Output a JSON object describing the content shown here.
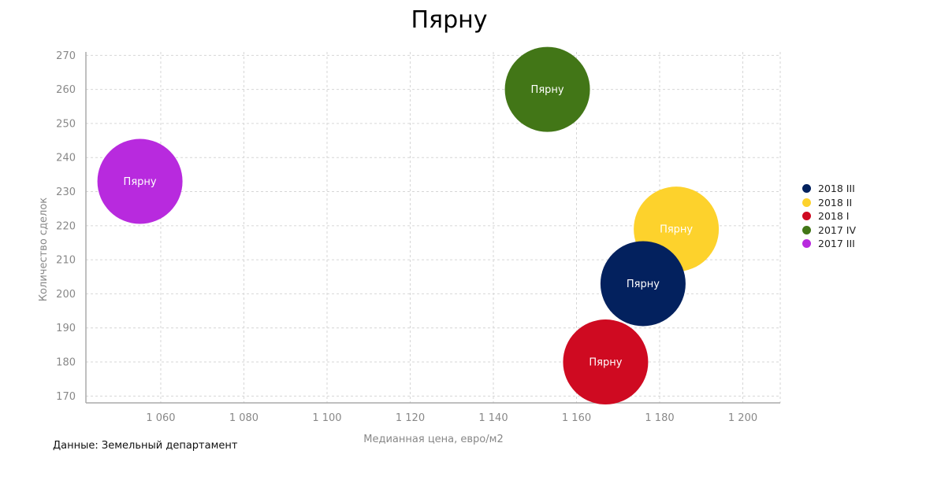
{
  "chart_data": {
    "type": "bubble",
    "title": "Пярну",
    "xlabel": "Медианная цена, евро/м2",
    "ylabel": "Количество сделок",
    "xlim": [
      1042,
      1209
    ],
    "ylim": [
      168,
      271
    ],
    "xticks": [
      "1 060",
      "1 080",
      "1 100",
      "1 120",
      "1 140",
      "1 160",
      "1 180",
      "1 200"
    ],
    "xtick_values": [
      1060,
      1080,
      1100,
      1120,
      1140,
      1160,
      1180,
      1200
    ],
    "yticks": [
      "170",
      "180",
      "190",
      "200",
      "210",
      "220",
      "230",
      "240",
      "250",
      "260",
      "270"
    ],
    "ytick_values": [
      170,
      180,
      190,
      200,
      210,
      220,
      230,
      240,
      250,
      260,
      270
    ],
    "grid": true,
    "legend_position": "right",
    "series": [
      {
        "name": "2017 III",
        "color": "#b82ade",
        "points": [
          {
            "x": 1055,
            "y": 233,
            "label": "Пярну"
          }
        ]
      },
      {
        "name": "2017 IV",
        "color": "#427617",
        "points": [
          {
            "x": 1153,
            "y": 260,
            "label": "Пярну"
          }
        ]
      },
      {
        "name": "2018 II",
        "color": "#fdd22c",
        "points": [
          {
            "x": 1184,
            "y": 219,
            "label": "Пярну"
          }
        ]
      },
      {
        "name": "2018 III",
        "color": "#03215e",
        "points": [
          {
            "x": 1176,
            "y": 203,
            "label": "Пярну"
          }
        ]
      },
      {
        "name": "2018 I",
        "color": "#cf0a21",
        "points": [
          {
            "x": 1167,
            "y": 180,
            "label": "Пярну"
          }
        ]
      }
    ]
  },
  "legend": [
    {
      "name": "2018 III",
      "color": "#03215e"
    },
    {
      "name": "2018 II",
      "color": "#fdd22c"
    },
    {
      "name": "2018 I",
      "color": "#cf0a21"
    },
    {
      "name": "2017 IV",
      "color": "#427617"
    },
    {
      "name": "2017 III",
      "color": "#b82ade"
    }
  ],
  "source": "Данные: Земельный департамент"
}
